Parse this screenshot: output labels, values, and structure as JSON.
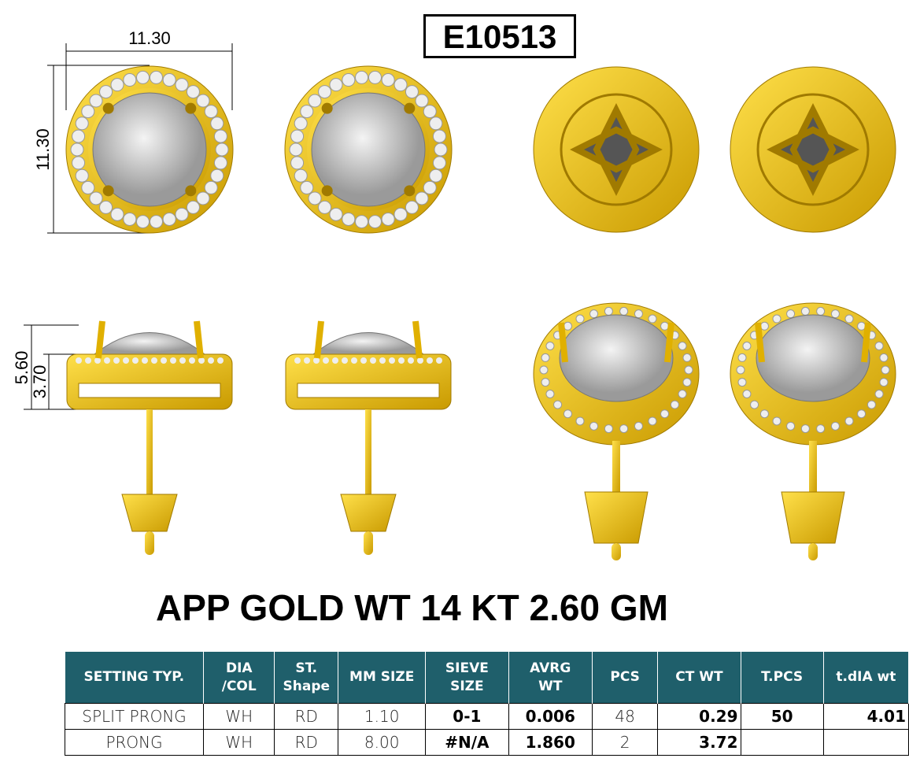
{
  "design_code": "E10513",
  "dimensions": {
    "width": "11.30",
    "height": "11.30",
    "total_height": "5.60",
    "halo_height": "3.70"
  },
  "gold_weight_text": "APP GOLD WT 14 KT 2.60 GM",
  "colors": {
    "gold": "#f2c200",
    "header": "#1f5f6b"
  },
  "table": {
    "headers": [
      [
        "SETTING TYP."
      ],
      [
        "DIA",
        "/COL"
      ],
      [
        "ST.",
        "Shape"
      ],
      [
        "MM SIZE"
      ],
      [
        "SIEVE",
        "SIZE"
      ],
      [
        "AVRG",
        "WT"
      ],
      [
        "PCS"
      ],
      [
        "CT WT"
      ],
      [
        "T.PCS"
      ],
      [
        "t.dIA wt"
      ]
    ],
    "rows": [
      [
        "SPLIT PRONG",
        "WH",
        "RD",
        "1.10",
        "0-1",
        "0.006",
        "48",
        "0.29",
        "50",
        "4.01"
      ],
      [
        "PRONG",
        "WH",
        "RD",
        "8.00",
        "#N/A",
        "1.860",
        "2",
        "3.72",
        "",
        ""
      ]
    ]
  }
}
